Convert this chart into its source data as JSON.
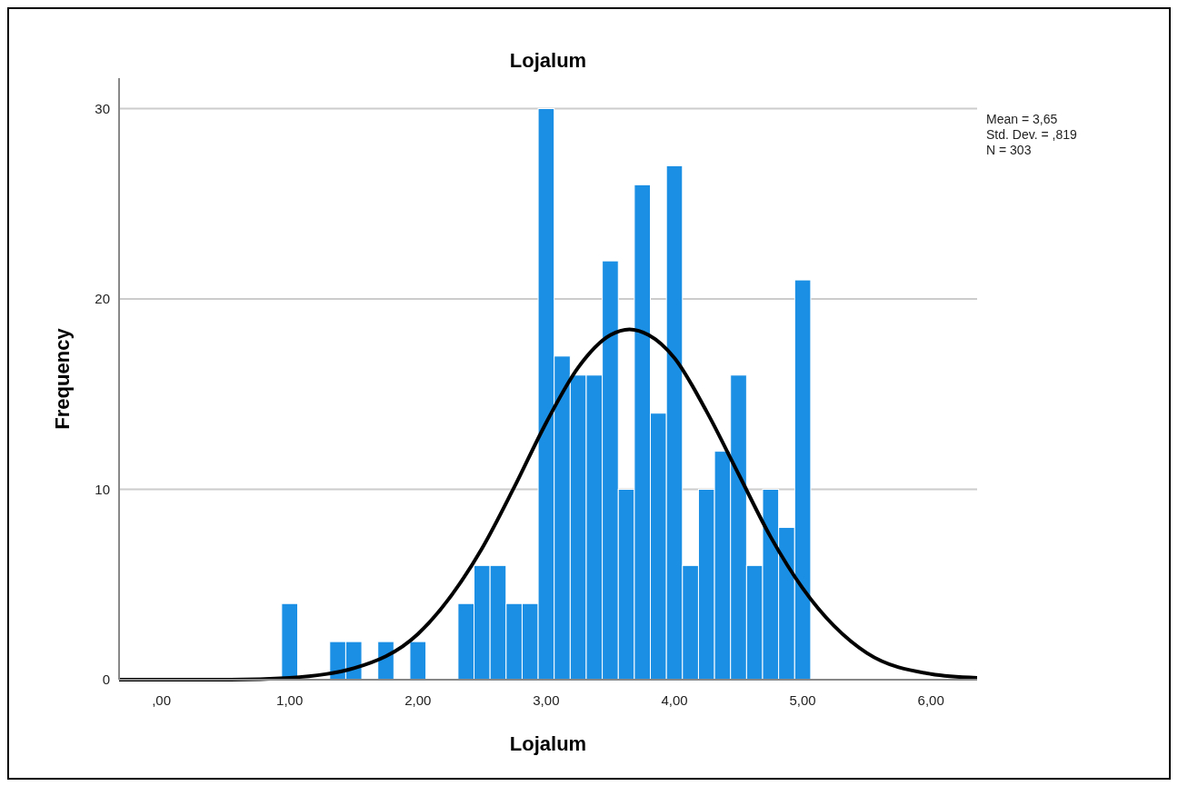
{
  "chart_data": {
    "type": "histogram",
    "title": "Lojalum",
    "xlabel": "Lojalum",
    "ylabel": "Frequency",
    "annotations": [
      "Mean = 3,65",
      "Std. Dev. = ,819",
      "N = 303"
    ],
    "series": [
      {
        "color": "#1a8fe3",
        "bins": [
          0.9375,
          1.0625,
          1.1875,
          1.3125,
          1.4375,
          1.5625,
          1.6875,
          1.8125,
          1.9375,
          2.0625,
          2.1875,
          2.3125,
          2.4375,
          2.5625,
          2.6875,
          2.8125,
          2.9375,
          3.0625,
          3.1875,
          3.3125,
          3.4375,
          3.5625,
          3.6875,
          3.8125,
          3.9375,
          4.0625,
          4.1875,
          4.3125,
          4.4375,
          4.5625,
          4.6875,
          4.8125,
          4.9375,
          5.0625
        ],
        "values": [
          4,
          0,
          0,
          2,
          2,
          0,
          2,
          0,
          2,
          0,
          0,
          4,
          6,
          6,
          4,
          4,
          30,
          17,
          16,
          16,
          22,
          10,
          26,
          14,
          27,
          6,
          10,
          12,
          16,
          6,
          10,
          8,
          21
        ]
      },
      {
        "type": "line",
        "color": "#000000",
        "x": [
          -0.33,
          0.5,
          1.0,
          1.5,
          2.0,
          2.5,
          2.75,
          3.0,
          3.25,
          3.5,
          3.65,
          3.8,
          4.0,
          4.25,
          4.5,
          4.75,
          5.0,
          5.5,
          6.0,
          6.36
        ],
        "values": [
          0,
          0,
          0.1,
          0.6,
          2.4,
          6.9,
          10.1,
          13.5,
          16.4,
          18.1,
          18.4,
          18.1,
          16.9,
          14.1,
          10.8,
          7.5,
          4.8,
          1.4,
          0.3,
          0.1
        ]
      }
    ],
    "xlim": [
      -0.33,
      6.36
    ],
    "xticks": [
      {
        "value": 0,
        "label": ",00"
      },
      {
        "value": 1,
        "label": "1,00"
      },
      {
        "value": 2,
        "label": "2,00"
      },
      {
        "value": 3,
        "label": "3,00"
      },
      {
        "value": 4,
        "label": "4,00"
      },
      {
        "value": 5,
        "label": "5,00"
      },
      {
        "value": 6,
        "label": "6,00"
      }
    ],
    "ylim": [
      0,
      31.6
    ],
    "yticks": [
      0,
      10,
      20,
      30
    ],
    "grid": "y"
  }
}
